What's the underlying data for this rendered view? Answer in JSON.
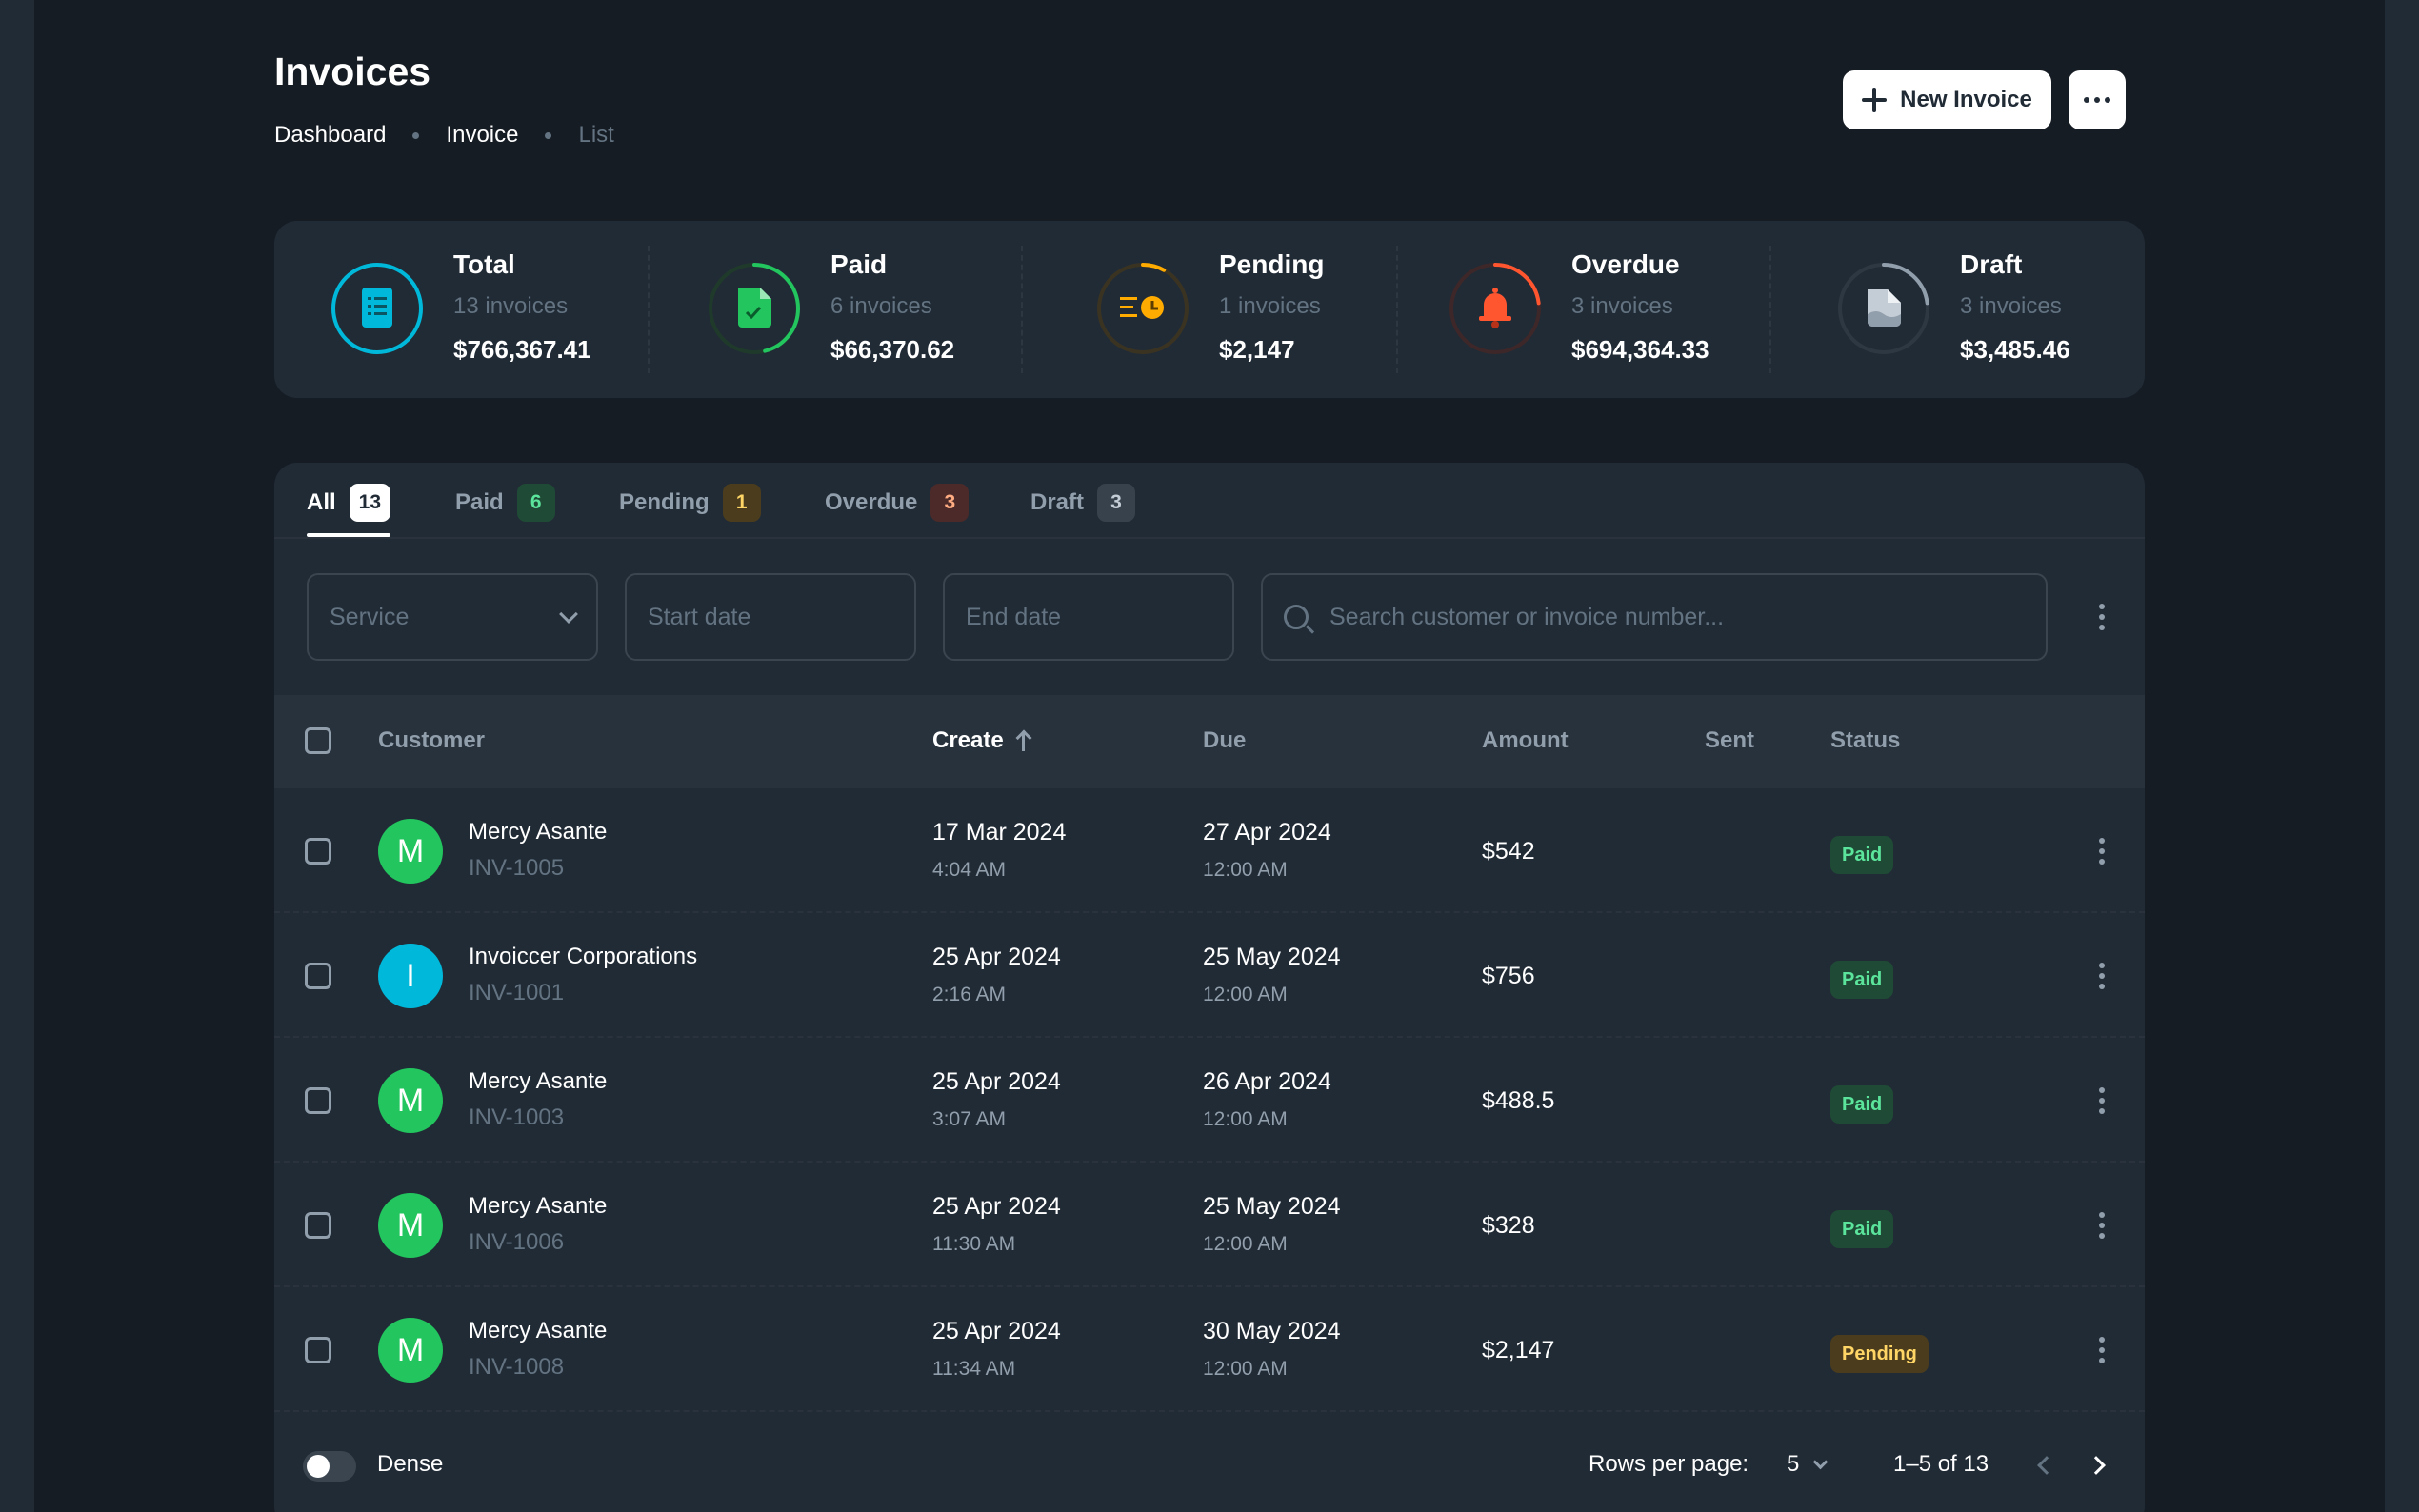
{
  "header": {
    "title": "Invoices",
    "breadcrumb": [
      "Dashboard",
      "Invoice",
      "List"
    ],
    "new_invoice_label": "New Invoice"
  },
  "stats": [
    {
      "title": "Total",
      "count": "13 invoices",
      "amount": "$766,367.41",
      "color": "#00b8d9",
      "progress": 100,
      "icon": "receipt-icon"
    },
    {
      "title": "Paid",
      "count": "6 invoices",
      "amount": "$66,370.62",
      "color": "#22c55e",
      "progress": 46,
      "icon": "file-check-icon"
    },
    {
      "title": "Pending",
      "count": "1 invoices",
      "amount": "$2,147",
      "color": "#ffab00",
      "progress": 8,
      "icon": "clock-icon"
    },
    {
      "title": "Overdue",
      "count": "3 invoices",
      "amount": "$694,364.33",
      "color": "#ff5630",
      "progress": 23,
      "icon": "bell-icon"
    },
    {
      "title": "Draft",
      "count": "3 invoices",
      "amount": "$3,485.46",
      "color": "#919eab",
      "progress": 23,
      "icon": "file-icon"
    }
  ],
  "tabs": [
    {
      "label": "All",
      "count": "13"
    },
    {
      "label": "Paid",
      "count": "6"
    },
    {
      "label": "Pending",
      "count": "1"
    },
    {
      "label": "Overdue",
      "count": "3"
    },
    {
      "label": "Draft",
      "count": "3"
    }
  ],
  "filters": {
    "service_placeholder": "Service",
    "start_date_placeholder": "Start date",
    "end_date_placeholder": "End date",
    "search_placeholder": "Search customer or invoice number..."
  },
  "table": {
    "columns": {
      "customer": "Customer",
      "create": "Create",
      "due": "Due",
      "amount": "Amount",
      "sent": "Sent",
      "status": "Status"
    },
    "rows": [
      {
        "initial": "M",
        "name": "Mercy Asante",
        "invoice": "INV-1005",
        "create_date": "17 Mar 2024",
        "create_time": "4:04 AM",
        "due_date": "27 Apr 2024",
        "due_time": "12:00 AM",
        "amount": "$542",
        "status": "Paid",
        "avatar_color": "#22c55e"
      },
      {
        "initial": "I",
        "name": "Invoiccer Corporations",
        "invoice": "INV-1001",
        "create_date": "25 Apr 2024",
        "create_time": "2:16 AM",
        "due_date": "25 May 2024",
        "due_time": "12:00 AM",
        "amount": "$756",
        "status": "Paid",
        "avatar_color": "#00b8d9"
      },
      {
        "initial": "M",
        "name": "Mercy Asante",
        "invoice": "INV-1003",
        "create_date": "25 Apr 2024",
        "create_time": "3:07 AM",
        "due_date": "26 Apr 2024",
        "due_time": "12:00 AM",
        "amount": "$488.5",
        "status": "Paid",
        "avatar_color": "#22c55e"
      },
      {
        "initial": "M",
        "name": "Mercy Asante",
        "invoice": "INV-1006",
        "create_date": "25 Apr 2024",
        "create_time": "11:30 AM",
        "due_date": "25 May 2024",
        "due_time": "12:00 AM",
        "amount": "$328",
        "status": "Paid",
        "avatar_color": "#22c55e"
      },
      {
        "initial": "M",
        "name": "Mercy Asante",
        "invoice": "INV-1008",
        "create_date": "25 Apr 2024",
        "create_time": "11:34 AM",
        "due_date": "30 May 2024",
        "due_time": "12:00 AM",
        "amount": "$2,147",
        "status": "Pending",
        "avatar_color": "#22c55e"
      }
    ]
  },
  "footer": {
    "dense_label": "Dense",
    "rows_per_page_label": "Rows per page:",
    "rows_per_page_value": "5",
    "range": "1–5 of 13"
  }
}
